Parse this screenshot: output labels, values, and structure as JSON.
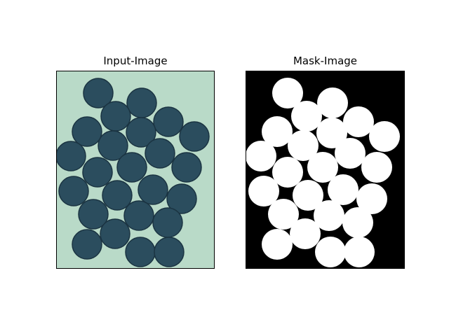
{
  "figure": {
    "left_title": "Input-Image",
    "right_title": "Mask-Image"
  },
  "colors": {
    "paper_background": "#b9dac8",
    "coin_fill": "#2b4d5e",
    "coin_edge": "#1b3442",
    "mask_background": "#000000",
    "mask_foreground": "#ffffff"
  }
}
